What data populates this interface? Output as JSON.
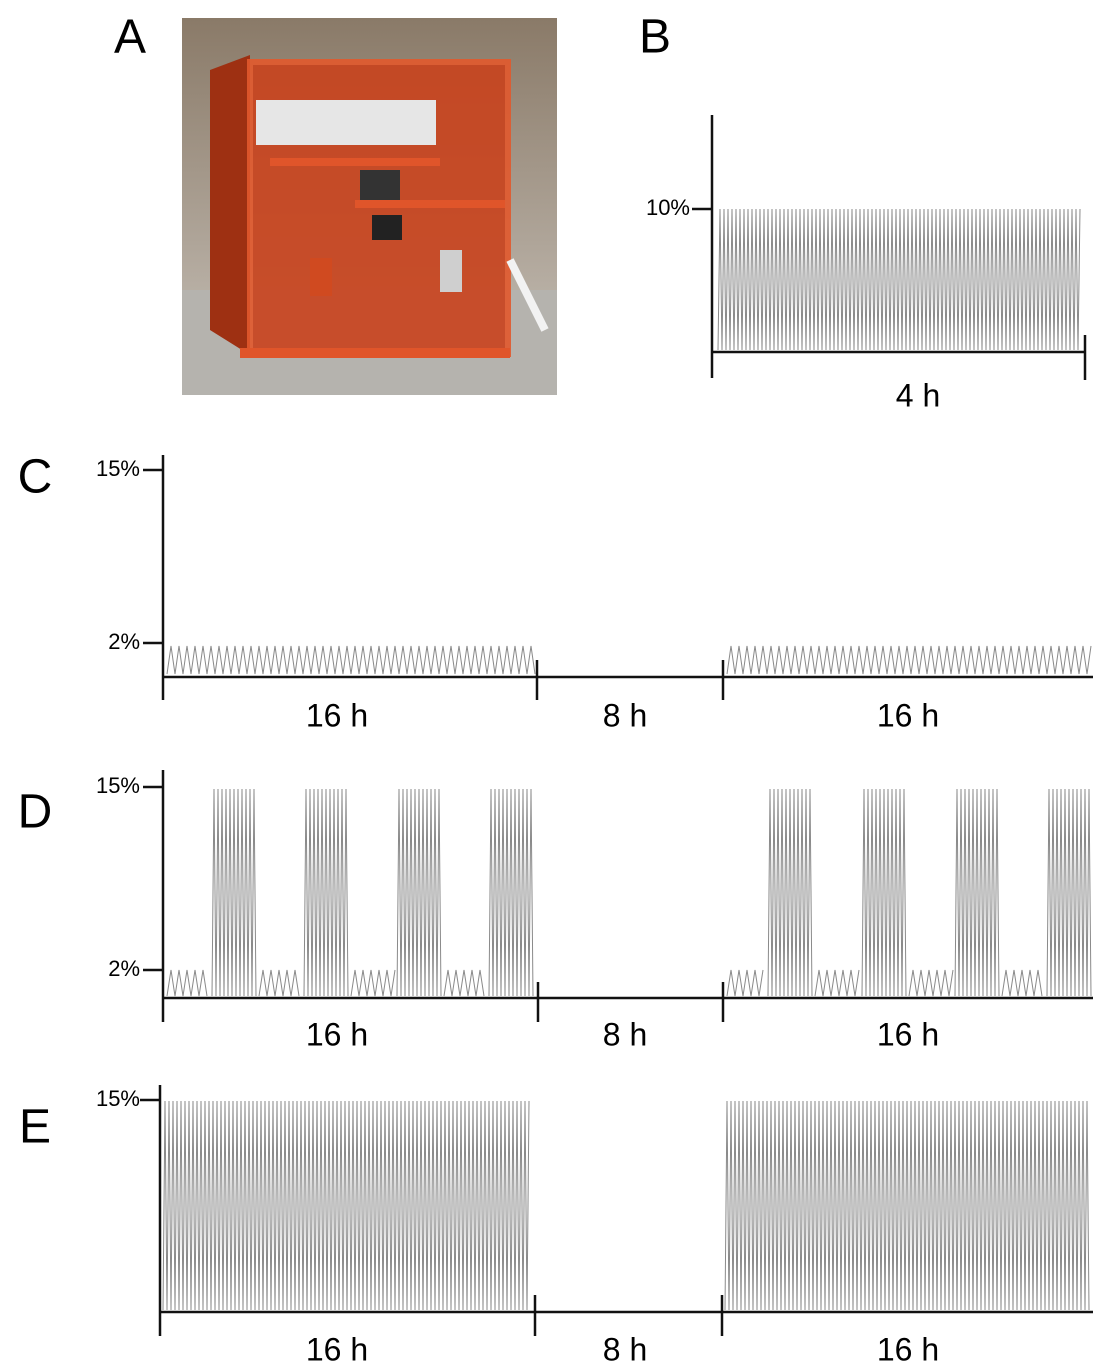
{
  "panels": {
    "a": {
      "label": "A"
    },
    "b": {
      "label": "B",
      "tick": "10%",
      "duration": "4 h"
    },
    "c": {
      "label": "C",
      "ticks": [
        "15%",
        "2%"
      ],
      "durations": [
        "16 h",
        "8 h",
        "16 h"
      ]
    },
    "d": {
      "label": "D",
      "ticks": [
        "15%",
        "2%"
      ],
      "durations": [
        "16 h",
        "8 h",
        "16 h"
      ]
    },
    "e": {
      "label": "E",
      "ticks": [
        "15%"
      ],
      "durations": [
        "16 h",
        "8 h",
        "16 h"
      ]
    }
  }
}
